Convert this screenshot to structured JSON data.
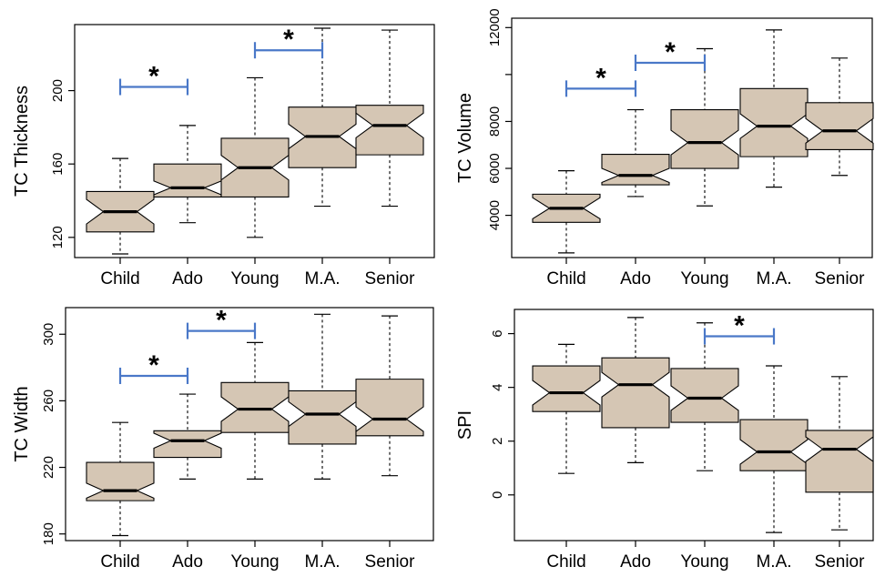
{
  "colors": {
    "box_fill": "#d5c6b4",
    "bracket": "#4a78c8",
    "axis": "#000000"
  },
  "chart_data": [
    {
      "type": "boxplot",
      "notched": true,
      "ylabel": "TC Thickness",
      "ylim": [
        109,
        236
      ],
      "yticks": [
        120,
        160,
        200
      ],
      "categories": [
        "Child",
        "Ado",
        "Young",
        "M.A.",
        "Senior"
      ],
      "boxes": [
        {
          "whisker_low": 111,
          "q1": 123,
          "median": 134,
          "q3": 145,
          "whisker_high": 163
        },
        {
          "whisker_low": 128,
          "q1": 142,
          "median": 147,
          "q3": 160,
          "whisker_high": 181
        },
        {
          "whisker_low": 120,
          "q1": 142,
          "median": 158,
          "q3": 174,
          "whisker_high": 207
        },
        {
          "whisker_low": 137,
          "q1": 158,
          "median": 175,
          "q3": 191,
          "whisker_high": 234
        },
        {
          "whisker_low": 137,
          "q1": 165,
          "median": 181,
          "q3": 192,
          "whisker_high": 233
        }
      ],
      "significance": [
        {
          "from": "Child",
          "to": "Ado",
          "value": 202,
          "label": "*"
        },
        {
          "from": "Young",
          "to": "M.A.",
          "value": 222,
          "label": "*"
        }
      ]
    },
    {
      "type": "boxplot",
      "notched": true,
      "ylabel": "TC Volume",
      "ylim": [
        2200,
        12400
      ],
      "yticks": [
        4000,
        6000,
        8000,
        10000,
        12000
      ],
      "yticklabels": [
        "4000",
        "6000",
        "8000",
        "",
        "12000"
      ],
      "categories": [
        "Child",
        "Ado",
        "Young",
        "M.A.",
        "Senior"
      ],
      "boxes": [
        {
          "whisker_low": 2400,
          "q1": 3700,
          "median": 4300,
          "q3": 4900,
          "whisker_high": 5900
        },
        {
          "whisker_low": 4800,
          "q1": 5300,
          "median": 5700,
          "q3": 6600,
          "whisker_high": 8500
        },
        {
          "whisker_low": 4400,
          "q1": 6000,
          "median": 7100,
          "q3": 8500,
          "whisker_high": 11100
        },
        {
          "whisker_low": 5200,
          "q1": 6500,
          "median": 7800,
          "q3": 9400,
          "whisker_high": 11900
        },
        {
          "whisker_low": 5700,
          "q1": 6800,
          "median": 7600,
          "q3": 8800,
          "whisker_high": 10700
        }
      ],
      "significance": [
        {
          "from": "Child",
          "to": "Ado",
          "value": 9400,
          "label": "*"
        },
        {
          "from": "Ado",
          "to": "Young",
          "value": 10500,
          "label": "*"
        }
      ]
    },
    {
      "type": "boxplot",
      "notched": true,
      "ylabel": "TC Width",
      "ylim": [
        176,
        316
      ],
      "yticks": [
        180,
        220,
        260,
        300
      ],
      "categories": [
        "Child",
        "Ado",
        "Young",
        "M.A.",
        "Senior"
      ],
      "boxes": [
        {
          "whisker_low": 179,
          "q1": 200,
          "median": 206,
          "q3": 223,
          "whisker_high": 247
        },
        {
          "whisker_low": 213,
          "q1": 226,
          "median": 236,
          "q3": 242,
          "whisker_high": 264
        },
        {
          "whisker_low": 213,
          "q1": 241,
          "median": 255,
          "q3": 271,
          "whisker_high": 295
        },
        {
          "whisker_low": 213,
          "q1": 234,
          "median": 252,
          "q3": 266,
          "whisker_high": 312
        },
        {
          "whisker_low": 215,
          "q1": 239,
          "median": 249,
          "q3": 273,
          "whisker_high": 311
        }
      ],
      "significance": [
        {
          "from": "Child",
          "to": "Ado",
          "value": 275,
          "label": "*"
        },
        {
          "from": "Ado",
          "to": "Young",
          "value": 302,
          "label": "*"
        }
      ]
    },
    {
      "type": "boxplot",
      "notched": true,
      "ylabel": "SPI",
      "ylim": [
        -1.7,
        6.9
      ],
      "yticks": [
        0,
        2,
        4,
        6
      ],
      "categories": [
        "Child",
        "Ado",
        "Young",
        "M.A.",
        "Senior"
      ],
      "boxes": [
        {
          "whisker_low": 0.8,
          "q1": 3.1,
          "median": 3.8,
          "q3": 4.8,
          "whisker_high": 5.6
        },
        {
          "whisker_low": 1.2,
          "q1": 2.5,
          "median": 4.1,
          "q3": 5.1,
          "whisker_high": 6.6
        },
        {
          "whisker_low": 0.9,
          "q1": 2.7,
          "median": 3.6,
          "q3": 4.7,
          "whisker_high": 6.4
        },
        {
          "whisker_low": -1.4,
          "q1": 0.9,
          "median": 1.6,
          "q3": 2.8,
          "whisker_high": 4.8
        },
        {
          "whisker_low": -1.3,
          "q1": 0.1,
          "median": 1.7,
          "q3": 2.4,
          "whisker_high": 4.4
        }
      ],
      "significance": [
        {
          "from": "Young",
          "to": "M.A.",
          "value": 5.9,
          "label": "*"
        }
      ]
    }
  ]
}
